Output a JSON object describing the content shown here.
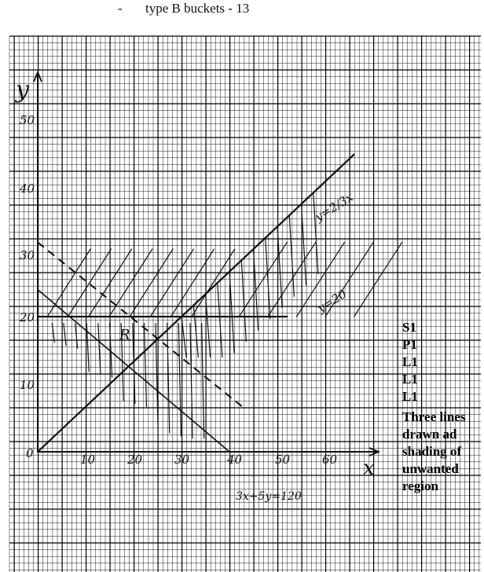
{
  "heading": {
    "bullet": "-",
    "text": "type B buckets - 13"
  },
  "graph": {
    "ylabel": "y",
    "xlabel": "x",
    "y_ticks": [
      "50",
      "40",
      "30",
      "20",
      "10",
      "0"
    ],
    "x_ticks": [
      "10",
      "20",
      "30",
      "40",
      "50",
      "60"
    ],
    "line1_label": "y=2/3x",
    "line2_label": "y=20",
    "line3_label": "3x+5y=120",
    "region_label": "R"
  },
  "chart_data": {
    "type": "line",
    "title": "",
    "xlabel": "x",
    "ylabel": "y",
    "xlim": [
      0,
      65
    ],
    "ylim": [
      0,
      55
    ],
    "grid": true,
    "series": [
      {
        "name": "y=2/3x",
        "x": [
          0,
          66
        ],
        "y": [
          0,
          44
        ]
      },
      {
        "name": "y=20",
        "x": [
          0,
          52
        ],
        "y": [
          20,
          20
        ]
      },
      {
        "name": "3x+5y=120",
        "x": [
          0,
          40
        ],
        "y": [
          24,
          0
        ]
      }
    ]
  },
  "marks": {
    "items": [
      "S1",
      "P1",
      "L1",
      "L1",
      "L1"
    ],
    "note": "Three lines drawn ad shading of unwanted region"
  },
  "colors": {
    "paper": "#ffffff",
    "grid": "#000000",
    "ink": "#111111"
  }
}
